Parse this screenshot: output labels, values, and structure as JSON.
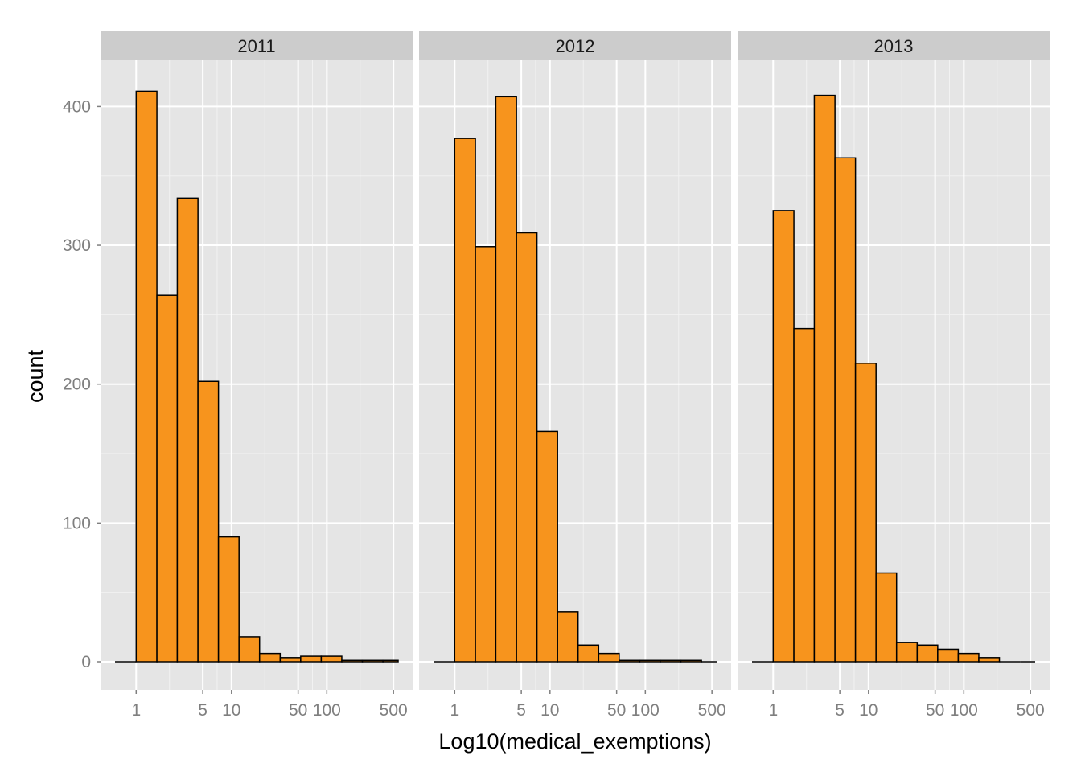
{
  "chart_data": {
    "type": "bar",
    "subtype": "faceted-histogram",
    "xlabel": "Log10(medical_exemptions)",
    "ylabel": "count",
    "x_scale": "log10",
    "x_ticks": [
      1,
      5,
      10,
      50,
      100,
      500
    ],
    "x_tick_labels": [
      "1",
      "5",
      "10",
      "50",
      "100",
      "500"
    ],
    "x_range": [
      0.6,
      560
    ],
    "ylim": [
      0,
      450
    ],
    "y_ticks": [
      0,
      100,
      200,
      300,
      400
    ],
    "y_tick_labels": [
      "0",
      "100",
      "200",
      "300",
      "400"
    ],
    "grid": true,
    "bar_color": "#F7941D",
    "bar_outline": "#000000",
    "panel_background": "#E5E5E5",
    "strip_background": "#CCCCCC",
    "bin_edges": [
      0.6,
      1,
      1.65,
      2.7,
      4.45,
      7.3,
      12,
      19.7,
      32.4,
      53.2,
      87.4,
      143.6,
      236,
      388,
      560
    ],
    "facets": [
      {
        "name": "2011",
        "values": [
          0,
          411,
          264,
          334,
          202,
          90,
          18,
          6,
          3,
          4,
          4,
          1,
          1,
          1
        ]
      },
      {
        "name": "2012",
        "values": [
          0,
          377,
          299,
          407,
          309,
          166,
          36,
          12,
          6,
          1,
          1,
          1,
          1,
          0
        ]
      },
      {
        "name": "2013",
        "values": [
          0,
          325,
          240,
          408,
          363,
          215,
          64,
          14,
          12,
          9,
          6,
          3,
          0,
          0
        ]
      }
    ]
  }
}
